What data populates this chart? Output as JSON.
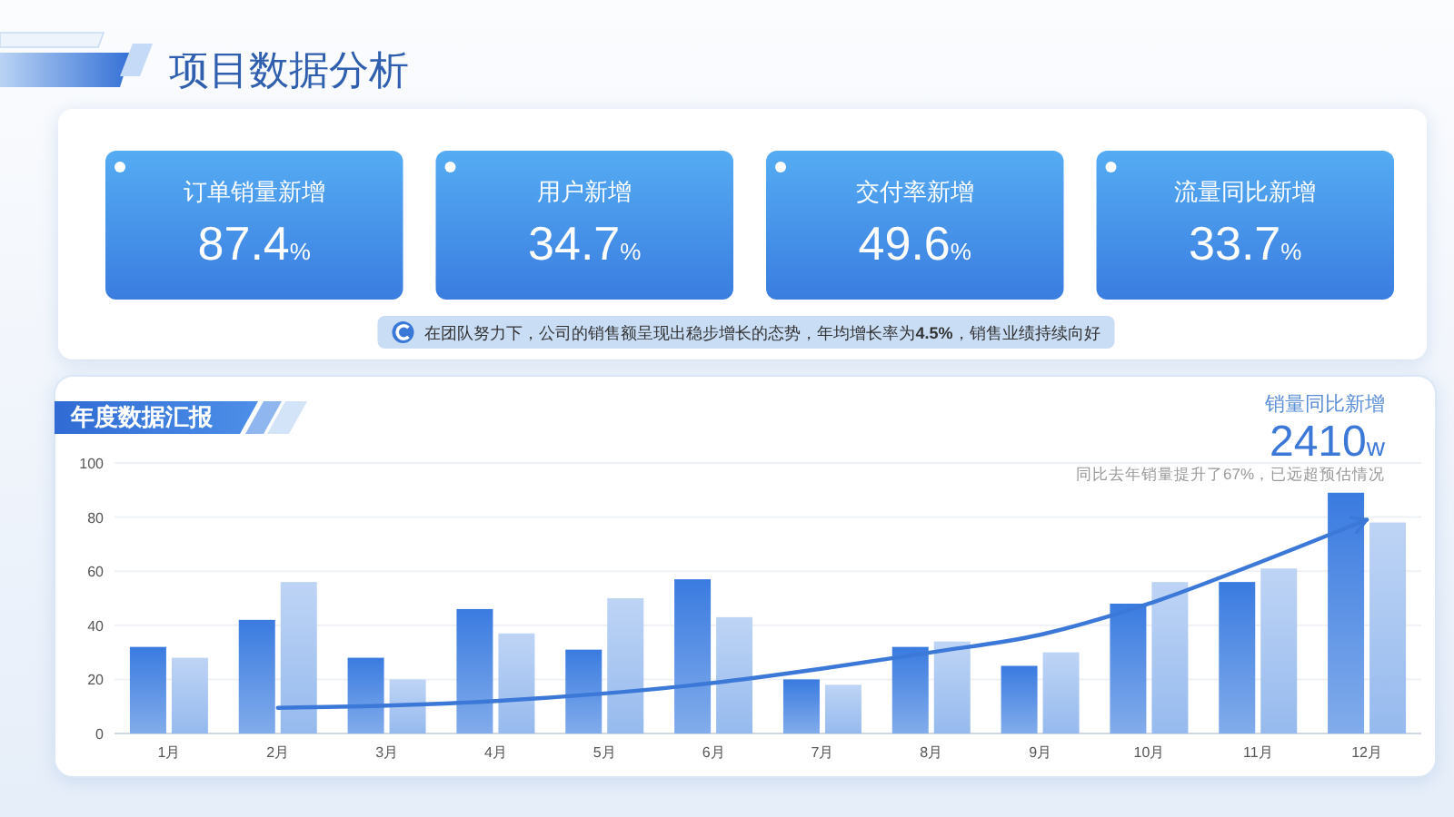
{
  "chart_data": [
    {
      "type": "other",
      "title": "项目数据分析",
      "categories": [
        "订单销量新增",
        "用户新增",
        "交付率新增",
        "流量同比新增"
      ],
      "value_labels": [
        "87.4%",
        "34.7%",
        "49.6%",
        "33.7%"
      ],
      "annotations": [
        "在团队努力下，公司的销售额呈现出稳步增长的态势，年均增长率为**4.5%**，销售业绩持续向好"
      ]
    },
    {
      "type": "bar",
      "title": "年度数据汇报",
      "categories": [
        "1月",
        "2月",
        "3月",
        "4月",
        "5月",
        "6月",
        "7月",
        "8月",
        "9月",
        "10月",
        "11月",
        "12月"
      ],
      "series": [
        {
          "color": "#3a7be0",
          "values": [
            32,
            42,
            28,
            46,
            31,
            57,
            20,
            32,
            25,
            48,
            56,
            89
          ]
        },
        {
          "color": "#bed4f5",
          "values": [
            28,
            56,
            20,
            37,
            50,
            43,
            18,
            34,
            30,
            56,
            61,
            78
          ]
        },
        {
          "type": "line",
          "color": "#3b78d8",
          "values": [
            null,
            9.5,
            10.3,
            12,
            14.8,
            18.7,
            24,
            30,
            36.5,
            48,
            63,
            79
          ]
        }
      ],
      "ylim": [
        0,
        100
      ],
      "yticks": [
        0,
        20,
        40,
        60,
        80,
        100
      ],
      "grid": "y",
      "annotations": [
        "销量同比新增",
        "2410w",
        "同比去年销量提升了67%，已远超预估情况"
      ]
    }
  ]
}
